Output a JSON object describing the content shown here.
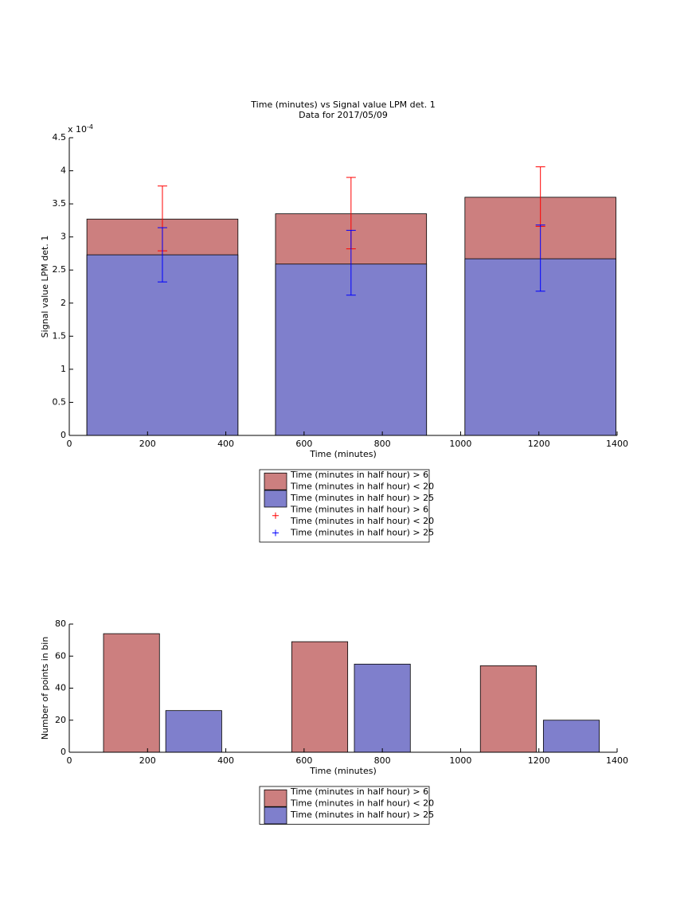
{
  "chart_data": [
    {
      "type": "bar",
      "title": [
        "Time (minutes) vs Signal value LPM det. 1",
        "Data for 2017/05/09"
      ],
      "xlabel": "Time (minutes)",
      "ylabel": "Signal value LPM det. 1",
      "y_exponent": {
        "base": "x 10",
        "power": "-4"
      },
      "xlim": [
        0,
        1400
      ],
      "xticks": [
        0,
        200,
        400,
        600,
        800,
        1000,
        1200,
        1400
      ],
      "ylim": [
        0,
        4.5
      ],
      "yticks": [
        0,
        0.5,
        1,
        1.5,
        2,
        2.5,
        3,
        3.5,
        4,
        4.5
      ],
      "bar_width": 386,
      "series": [
        {
          "mark": "bar",
          "name": [
            "Time (minutes in half hour) > 6",
            "Time (minutes in half hour) < 20"
          ],
          "color": "#cc7f7f",
          "x": [
            238,
            720,
            1204
          ],
          "values": [
            3.27,
            3.35,
            3.6
          ]
        },
        {
          "mark": "bar",
          "name": [
            "Time (minutes in half hour) > 25"
          ],
          "color": "#7f7fcc",
          "x": [
            238,
            720,
            1204
          ],
          "values": [
            2.73,
            2.59,
            2.67
          ]
        },
        {
          "mark": "errorbar",
          "name": [
            "Time (minutes in half hour) > 6",
            "Time (minutes in half hour) < 20"
          ],
          "color": "#ff0000",
          "x": [
            238,
            720,
            1204
          ],
          "values": [
            3.28,
            3.36,
            3.61
          ],
          "errors": [
            0.49,
            0.54,
            0.45
          ]
        },
        {
          "mark": "errorbar",
          "name": [
            "Time (minutes in half hour) > 25"
          ],
          "color": "#0000ff",
          "x": [
            238,
            720,
            1204
          ],
          "values": [
            2.73,
            2.61,
            2.68
          ],
          "errors": [
            0.41,
            0.49,
            0.5
          ]
        }
      ]
    },
    {
      "type": "bar",
      "xlabel": "Time (minutes)",
      "ylabel": "Number of points in bin",
      "xlim": [
        0,
        1400
      ],
      "xticks": [
        0,
        200,
        400,
        600,
        800,
        1000,
        1200,
        1400
      ],
      "ylim": [
        0,
        80
      ],
      "yticks": [
        0,
        20,
        40,
        60,
        80
      ],
      "bar_width": 143,
      "series": [
        {
          "mark": "bar",
          "name": [
            "Time (minutes in half hour) > 6",
            "Time (minutes in half hour) < 20"
          ],
          "color": "#cc7f7f",
          "x": [
            159,
            640,
            1122
          ],
          "values": [
            74,
            69,
            54
          ]
        },
        {
          "mark": "bar",
          "name": [
            "Time (minutes in half hour) > 25"
          ],
          "color": "#7f7fcc",
          "x": [
            318,
            800,
            1283
          ],
          "values": [
            26,
            55,
            20
          ]
        }
      ]
    }
  ]
}
